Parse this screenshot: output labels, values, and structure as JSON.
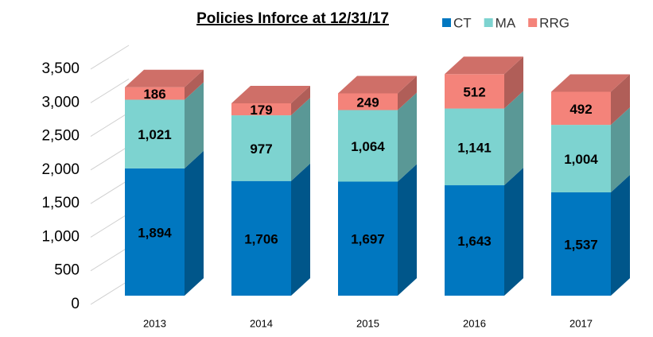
{
  "chart_data": {
    "type": "bar3d_stacked",
    "title": "Policies Inforce at 12/31/17",
    "categories": [
      "2013",
      "2014",
      "2015",
      "2016",
      "2017"
    ],
    "series": [
      {
        "name": "CT",
        "color": "#0077c0",
        "values": [
          1894,
          1706,
          1697,
          1643,
          1537
        ],
        "value_labels": [
          "1,894",
          "1,706",
          "1,697",
          "1,643",
          "1,537"
        ]
      },
      {
        "name": "MA",
        "color": "#7dd3d0",
        "values": [
          1021,
          977,
          1064,
          1141,
          1004
        ],
        "value_labels": [
          "1,021",
          "977",
          "1,064",
          "1,141",
          "1,004"
        ]
      },
      {
        "name": "RRG",
        "color": "#f4837a",
        "values": [
          186,
          179,
          249,
          512,
          492
        ],
        "value_labels": [
          "186",
          "179",
          "249",
          "512",
          "492"
        ]
      }
    ],
    "ylim": [
      0,
      3500
    ],
    "yticks": [
      0,
      500,
      {
        "value": 1000,
        "label": "1,000"
      },
      {
        "value": 1500,
        "label": "1,500"
      },
      {
        "value": 2000,
        "label": "2,000"
      },
      {
        "value": 2500,
        "label": "2,500"
      },
      {
        "value": 3000,
        "label": "3,000"
      },
      {
        "value": 3500,
        "label": "3,500"
      }
    ],
    "grid": true,
    "legend": "top-right"
  }
}
